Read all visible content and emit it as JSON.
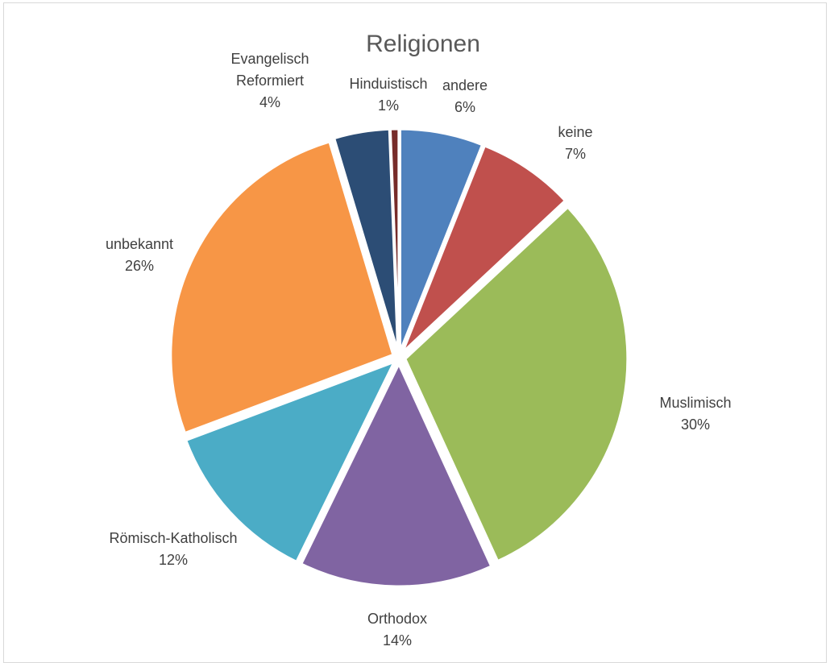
{
  "chart_data": {
    "type": "pie",
    "title": "Religionen",
    "start_angle_deg": 0,
    "direction": "clockwise",
    "slices": [
      {
        "label": "andere",
        "value": 6,
        "percent_label": "6%",
        "color": "#4f81bd"
      },
      {
        "label": "keine",
        "value": 7,
        "percent_label": "7%",
        "color": "#c0504d"
      },
      {
        "label": "Muslimisch",
        "value": 30,
        "percent_label": "30%",
        "color": "#9bbb59"
      },
      {
        "label": "Orthodox",
        "value": 14,
        "percent_label": "14%",
        "color": "#8064a2"
      },
      {
        "label": "Römisch-Katholisch",
        "value": 12,
        "percent_label": "12%",
        "color": "#4bacc6"
      },
      {
        "label": "unbekannt",
        "value": 26,
        "percent_label": "26%",
        "color": "#f79646"
      },
      {
        "label": "Evangelisch Reformiert",
        "value": 4,
        "percent_label": "4%",
        "color": "#2c4d75"
      },
      {
        "label": "Hinduistisch",
        "value": 0.6,
        "percent_label": "1%",
        "color": "#772c2a"
      }
    ]
  }
}
